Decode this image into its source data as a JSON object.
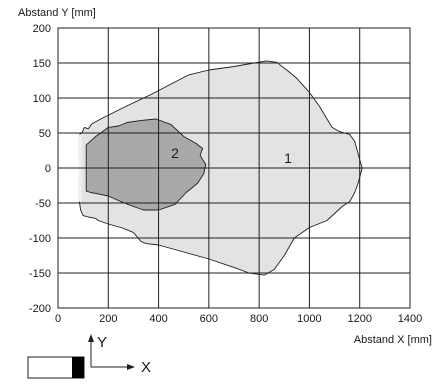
{
  "chart_data": {
    "type": "area",
    "title": "",
    "xlabel": "Abstand X [mm]",
    "ylabel": "Abstand Y [mm]",
    "xlim": [
      0,
      1400
    ],
    "ylim": [
      -200,
      200
    ],
    "x_ticks": [
      "0",
      "200",
      "400",
      "600",
      "800",
      "1000",
      "1200",
      "1400"
    ],
    "y_ticks": [
      "200",
      "150",
      "100",
      "50",
      "0",
      "-50",
      "-100",
      "-150",
      "-200"
    ],
    "x_tick_values": [
      0,
      200,
      400,
      600,
      800,
      1000,
      1200,
      1400
    ],
    "y_tick_values": [
      200,
      150,
      100,
      50,
      0,
      -50,
      -100,
      -150,
      -200
    ],
    "grid": true,
    "series": [
      {
        "name": "1",
        "color": "#e3e3e3",
        "points": [
          [
            85,
            48
          ],
          [
            95,
            50
          ],
          [
            105,
            58
          ],
          [
            120,
            56
          ],
          [
            135,
            63
          ],
          [
            170,
            70
          ],
          [
            270,
            88
          ],
          [
            370,
            105
          ],
          [
            450,
            120
          ],
          [
            520,
            133
          ],
          [
            600,
            140
          ],
          [
            700,
            145
          ],
          [
            780,
            150
          ],
          [
            830,
            153
          ],
          [
            870,
            151
          ],
          [
            910,
            140
          ],
          [
            950,
            128
          ],
          [
            1000,
            108
          ],
          [
            1040,
            88
          ],
          [
            1070,
            70
          ],
          [
            1090,
            58
          ],
          [
            1120,
            52
          ],
          [
            1160,
            48
          ],
          [
            1180,
            38
          ],
          [
            1190,
            25
          ],
          [
            1200,
            12
          ],
          [
            1210,
            0
          ],
          [
            1195,
            -20
          ],
          [
            1180,
            -35
          ],
          [
            1160,
            -48
          ],
          [
            1130,
            -55
          ],
          [
            1100,
            -65
          ],
          [
            1070,
            -75
          ],
          [
            1000,
            -85
          ],
          [
            940,
            -100
          ],
          [
            900,
            -125
          ],
          [
            860,
            -145
          ],
          [
            820,
            -153
          ],
          [
            760,
            -150
          ],
          [
            700,
            -142
          ],
          [
            600,
            -130
          ],
          [
            500,
            -120
          ],
          [
            400,
            -110
          ],
          [
            350,
            -108
          ],
          [
            330,
            -105
          ],
          [
            300,
            -92
          ],
          [
            250,
            -85
          ],
          [
            200,
            -80
          ],
          [
            160,
            -75
          ],
          [
            150,
            -72
          ],
          [
            120,
            -70
          ],
          [
            100,
            -68
          ],
          [
            90,
            -60
          ],
          [
            85,
            -48
          ]
        ]
      },
      {
        "name": "2",
        "color": "#a9a9a9",
        "points": [
          [
            112,
            33
          ],
          [
            150,
            45
          ],
          [
            200,
            58
          ],
          [
            240,
            60
          ],
          [
            275,
            65
          ],
          [
            330,
            68
          ],
          [
            390,
            70
          ],
          [
            450,
            62
          ],
          [
            500,
            45
          ],
          [
            550,
            35
          ],
          [
            560,
            32
          ],
          [
            575,
            28
          ],
          [
            565,
            18
          ],
          [
            588,
            5
          ],
          [
            580,
            -8
          ],
          [
            555,
            -22
          ],
          [
            510,
            -35
          ],
          [
            465,
            -52
          ],
          [
            400,
            -60
          ],
          [
            340,
            -60
          ],
          [
            300,
            -55
          ],
          [
            250,
            -48
          ],
          [
            200,
            -40
          ],
          [
            160,
            -37
          ],
          [
            130,
            -35
          ],
          [
            112,
            -33
          ]
        ]
      }
    ],
    "near_edge": {
      "color": "#f0f0f0",
      "points": [
        [
          82,
          48
        ],
        [
          95,
          48
        ],
        [
          95,
          -48
        ],
        [
          82,
          -48
        ]
      ]
    },
    "legend": {
      "y_label": "Y",
      "x_label": "X"
    }
  }
}
